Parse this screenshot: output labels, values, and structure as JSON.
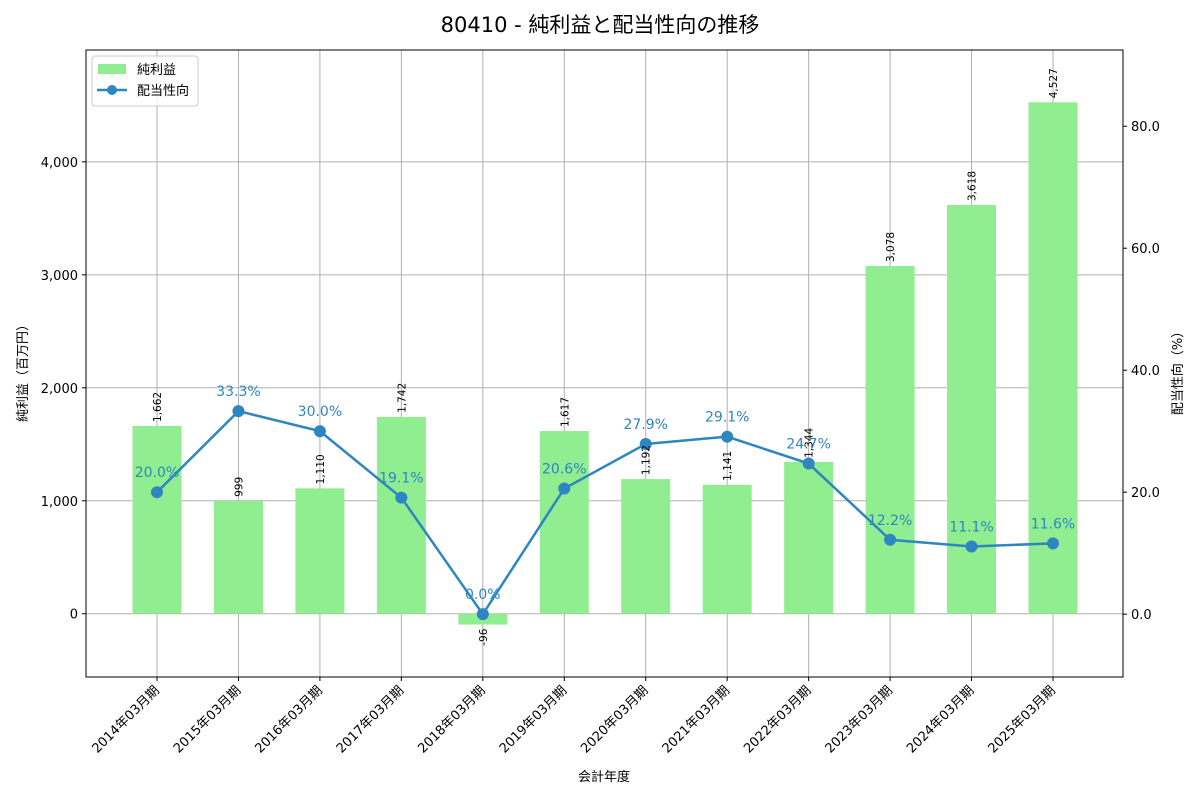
{
  "title": "80410 - 純利益と配当性向の推移",
  "chart_data": {
    "type": "bar+line",
    "title": "80410 - 純利益と配当性向の推移",
    "xlabel": "会計年度",
    "ylabel_left": "純利益（百万円）",
    "ylabel_right": "配当性向（%）",
    "categories": [
      "2014年03月期",
      "2015年03月期",
      "2016年03月期",
      "2017年03月期",
      "2018年03月期",
      "2019年03月期",
      "2020年03月期",
      "2021年03月期",
      "2022年03月期",
      "2023年03月期",
      "2024年03月期",
      "2025年03月期"
    ],
    "series": [
      {
        "name": "純利益",
        "type": "bar",
        "axis": "left",
        "color": "#90ee90",
        "values": [
          1662,
          999,
          1110,
          1742,
          -96,
          1617,
          1192,
          1141,
          1344,
          3078,
          3618,
          4527
        ],
        "labels": [
          "1,662",
          "999",
          "1,110",
          "1,742",
          "-96",
          "1,617",
          "1,192",
          "1,141",
          "1,344",
          "3,078",
          "3,618",
          "4,527"
        ]
      },
      {
        "name": "配当性向",
        "type": "line",
        "axis": "right",
        "color": "#2e86c1",
        "values": [
          20.0,
          33.3,
          30.0,
          19.1,
          0.0,
          20.6,
          27.9,
          29.1,
          24.7,
          12.2,
          11.1,
          11.6
        ],
        "labels": [
          "20.0%",
          "33.3%",
          "30.0%",
          "19.1%",
          "0.0%",
          "20.6%",
          "27.9%",
          "29.1%",
          "24.7%",
          "12.2%",
          "11.1%",
          "11.6%"
        ]
      }
    ],
    "ylim_left": [
      -560,
      4990
    ],
    "ylim_right": [
      -10.3,
      92.5
    ],
    "yticks_left": [
      "0",
      "1,000",
      "2,000",
      "3,000",
      "4,000"
    ],
    "yticks_left_values": [
      0,
      1000,
      2000,
      3000,
      4000
    ],
    "yticks_right": [
      "0.0",
      "20.0",
      "40.0",
      "60.0",
      "80.0"
    ],
    "yticks_right_values": [
      0,
      20,
      40,
      60,
      80
    ],
    "grid": true,
    "legend_position": "upper left"
  },
  "legend": {
    "items": [
      {
        "label": "純利益",
        "color": "#90ee90",
        "kind": "bar"
      },
      {
        "label": "配当性向",
        "color": "#2e86c1",
        "kind": "line"
      }
    ]
  }
}
